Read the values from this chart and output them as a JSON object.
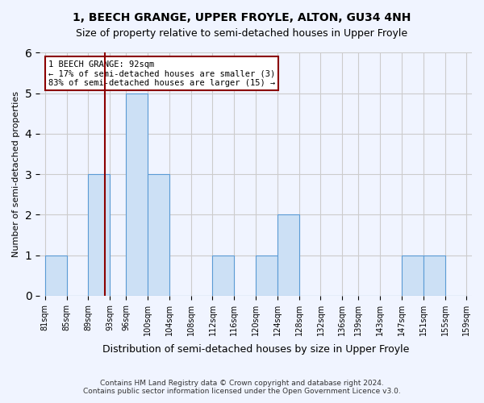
{
  "title_line1": "1, BEECH GRANGE, UPPER FROYLE, ALTON, GU34 4NH",
  "title_line2": "Size of property relative to semi-detached houses in Upper Froyle",
  "xlabel": "Distribution of semi-detached houses by size in Upper Froyle",
  "ylabel": "Number of semi-detached properties",
  "footer_line1": "Contains HM Land Registry data © Crown copyright and database right 2024.",
  "footer_line2": "Contains public sector information licensed under the Open Government Licence v3.0.",
  "annotation_line1": "1 BEECH GRANGE: 92sqm",
  "annotation_line2": "← 17% of semi-detached houses are smaller (3)",
  "annotation_line3": "83% of semi-detached houses are larger (15) →",
  "subject_size": 92,
  "bar_edges": [
    81,
    85,
    89,
    93,
    96,
    100,
    104,
    108,
    112,
    116,
    120,
    124,
    128,
    132,
    136,
    139,
    143,
    147,
    151,
    155,
    159
  ],
  "bar_heights": [
    1,
    0,
    3,
    0,
    5,
    3,
    0,
    0,
    1,
    0,
    1,
    2,
    0,
    0,
    0,
    0,
    0,
    1,
    1,
    0
  ],
  "bar_color": "#cce0f5",
  "bar_edge_color": "#5b9bd5",
  "vline_color": "#8b0000",
  "annotation_box_color": "#8b0000",
  "grid_color": "#cccccc",
  "ylim": [
    0,
    6
  ],
  "yticks": [
    0,
    1,
    2,
    3,
    4,
    5,
    6
  ],
  "background_color": "#f0f4ff"
}
